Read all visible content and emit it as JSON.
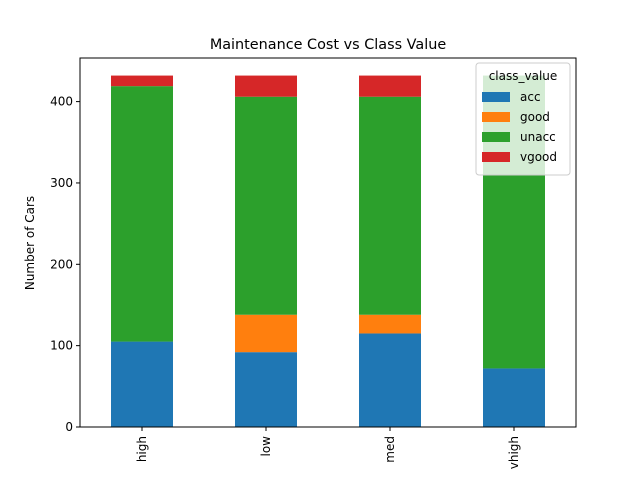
{
  "chart_data": {
    "type": "bar",
    "stacked": true,
    "title": "Maintenance Cost vs Class Value",
    "xlabel": "",
    "ylabel": "Number of Cars",
    "categories": [
      "high",
      "low",
      "med",
      "vhigh"
    ],
    "ylim": [
      0,
      453.6
    ],
    "yticks": [
      0,
      100,
      200,
      300,
      400
    ],
    "legend": {
      "title": "class_value",
      "placement": "top-right"
    },
    "series": [
      {
        "name": "acc",
        "color": "#1f77b4",
        "values": [
          105,
          92,
          115,
          72
        ]
      },
      {
        "name": "good",
        "color": "#ff7f0e",
        "values": [
          0,
          46,
          23,
          0
        ]
      },
      {
        "name": "unacc",
        "color": "#2ca02c",
        "values": [
          314,
          268,
          268,
          360
        ]
      },
      {
        "name": "vgood",
        "color": "#d62728",
        "values": [
          13,
          26,
          26,
          0
        ]
      }
    ]
  }
}
